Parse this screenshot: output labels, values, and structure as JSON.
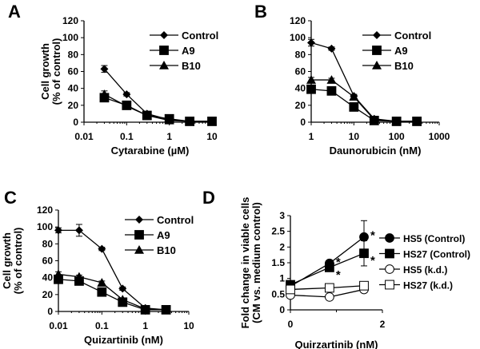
{
  "chart_data": [
    {
      "panel": "A",
      "type": "line",
      "xscale": "log",
      "xlabel": "Cytarabine (µM)",
      "ylabel": [
        "Cell growth",
        "(% of control)"
      ],
      "xlim": [
        0.01,
        10
      ],
      "ylim": [
        0,
        120
      ],
      "xticks": [
        "0.01",
        "0.1",
        "1",
        "10"
      ],
      "yticks": [
        "0",
        "20",
        "40",
        "60",
        "80",
        "100",
        "120"
      ],
      "legend_position": "top-right",
      "x": [
        0.03,
        0.1,
        0.3,
        1,
        3,
        10
      ],
      "series": [
        {
          "name": "Control",
          "marker": "diamond",
          "values": [
            63,
            33,
            10,
            3,
            1,
            1
          ],
          "errors": [
            4,
            2,
            1,
            1,
            0,
            0
          ]
        },
        {
          "name": "A9",
          "marker": "square",
          "values": [
            29,
            20,
            8,
            4,
            1,
            1
          ],
          "errors": [
            3,
            2,
            1,
            1,
            0,
            0
          ]
        },
        {
          "name": "B10",
          "marker": "triangle",
          "values": [
            33,
            19,
            8,
            2,
            1,
            1
          ],
          "errors": [
            4,
            2,
            1,
            1,
            0,
            0
          ]
        }
      ]
    },
    {
      "panel": "B",
      "type": "line",
      "xscale": "log",
      "xlabel": "Daunorubicin (nM)",
      "ylabel": [],
      "xlim": [
        1,
        1000
      ],
      "ylim": [
        0,
        120
      ],
      "xticks": [
        "1",
        "10",
        "100",
        "1000"
      ],
      "yticks": [
        "0",
        "20",
        "40",
        "60",
        "80",
        "100",
        "120"
      ],
      "legend_position": "top-right",
      "x": [
        1,
        3,
        10,
        30,
        100,
        300
      ],
      "series": [
        {
          "name": "Control",
          "marker": "diamond",
          "values": [
            94,
            87,
            31,
            4,
            1,
            1
          ],
          "errors": [
            4,
            2,
            2,
            1,
            0,
            0
          ]
        },
        {
          "name": "A9",
          "marker": "square",
          "values": [
            39,
            37,
            18,
            2,
            1,
            1
          ],
          "errors": [
            2,
            2,
            2,
            1,
            0,
            0
          ]
        },
        {
          "name": "B10",
          "marker": "triangle",
          "values": [
            50,
            50,
            30,
            3,
            1,
            1
          ],
          "errors": [
            3,
            2,
            2,
            1,
            0,
            0
          ]
        }
      ]
    },
    {
      "panel": "C",
      "type": "line",
      "xscale": "log",
      "xlabel": "Quizartinib (nM)",
      "ylabel": [
        "Cell growth",
        "(% of control)"
      ],
      "xlim": [
        0.01,
        10
      ],
      "ylim": [
        0,
        120
      ],
      "xticks": [
        "0.01",
        "0.1",
        "1",
        "10"
      ],
      "yticks": [
        "0",
        "20",
        "40",
        "60",
        "80",
        "100",
        "120"
      ],
      "legend_position": "top-right",
      "x": [
        0.01,
        0.03,
        0.1,
        0.3,
        1,
        3
      ],
      "series": [
        {
          "name": "Control",
          "marker": "diamond",
          "values": [
            96,
            96,
            74,
            27,
            4,
            2
          ],
          "errors": [
            3,
            7,
            2,
            2,
            1,
            0
          ]
        },
        {
          "name": "A9",
          "marker": "square",
          "values": [
            38,
            36,
            23,
            11,
            2,
            2
          ],
          "errors": [
            3,
            2,
            2,
            1,
            0,
            0
          ]
        },
        {
          "name": "B10",
          "marker": "triangle",
          "values": [
            44,
            41,
            34,
            14,
            3,
            2
          ],
          "errors": [
            3,
            2,
            2,
            1,
            0,
            0
          ]
        }
      ]
    },
    {
      "panel": "D",
      "type": "line",
      "xscale": "linear",
      "xlabel": "Quirzartinib (nM)",
      "ylabel": [
        "Fold change in viable cells",
        "(CM vs.  medium control)"
      ],
      "xlim": [
        0,
        2
      ],
      "ylim": [
        0,
        3
      ],
      "xticks": [
        "0",
        "2"
      ],
      "yticks": [
        "0",
        "0.5",
        "1",
        "1.5",
        "2",
        "2.5",
        "3"
      ],
      "legend_position": "right",
      "x": [
        0,
        0.85,
        1.6
      ],
      "series": [
        {
          "name": "HS5 (Control)",
          "marker": "circle-filled",
          "values": [
            0.75,
            1.48,
            2.32
          ],
          "errors": [
            0,
            0.05,
            0.52
          ],
          "significance": [
            "",
            "*",
            "*"
          ]
        },
        {
          "name": "HS27 (Control)",
          "marker": "square-filled",
          "values": [
            0.8,
            1.35,
            1.8
          ],
          "errors": [
            0,
            0.12,
            0.4
          ],
          "significance": [
            "",
            "*",
            "*"
          ]
        },
        {
          "name": "HS5 (k.d.)",
          "marker": "circle-open",
          "values": [
            0.47,
            0.41,
            0.65
          ],
          "errors": [
            0,
            0,
            0
          ]
        },
        {
          "name": "HS27 (k.d.)",
          "marker": "square-open",
          "values": [
            0.65,
            0.7,
            0.77
          ],
          "errors": [
            0,
            0,
            0
          ]
        }
      ]
    }
  ]
}
